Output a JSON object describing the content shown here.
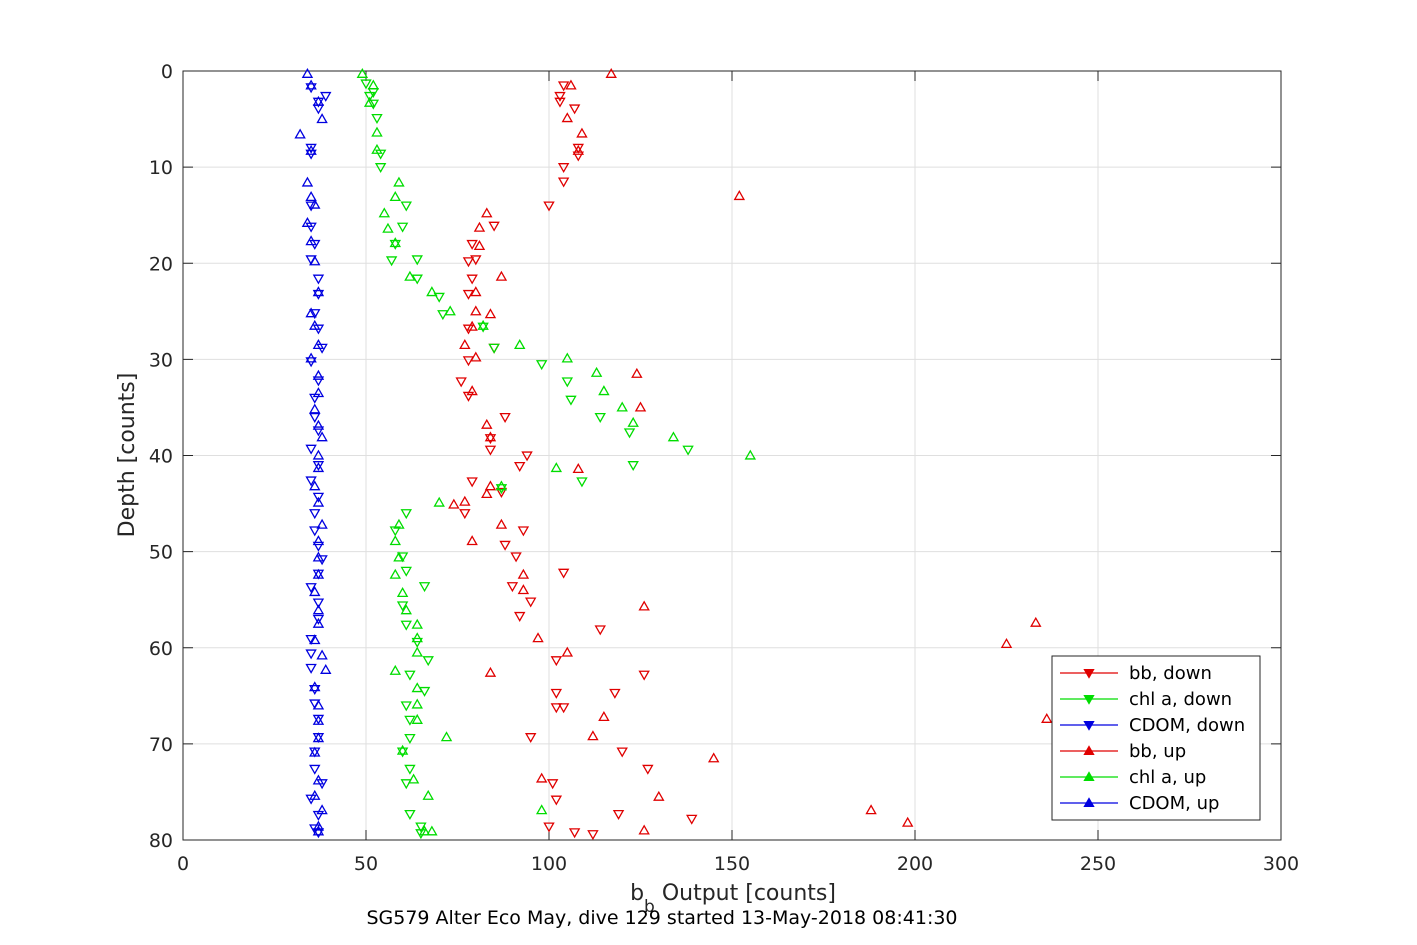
{
  "chart_data": {
    "type": "scatter",
    "subtitle": "SG579 Alter Eco May, dive 129 started 13-May-2018 08:41:30",
    "xlabel": {
      "main": "b",
      "sub": "b",
      "rest": " Output [counts]"
    },
    "ylabel": "Depth [counts]",
    "xlim": [
      0,
      300
    ],
    "ylim": [
      0,
      80
    ],
    "y_reversed": true,
    "xticks": [
      0,
      50,
      100,
      150,
      200,
      250,
      300
    ],
    "yticks": [
      0,
      10,
      20,
      30,
      40,
      50,
      60,
      70,
      80
    ],
    "grid": true,
    "legend_position": "bottom-right",
    "series": [
      {
        "name": "bb, down",
        "color": "#e00000",
        "marker": "triangle-down",
        "points": [
          [
            104,
            1.5
          ],
          [
            103,
            2.6
          ],
          [
            103,
            3.2
          ],
          [
            107,
            3.9
          ],
          [
            108,
            8.0
          ],
          [
            108,
            8.8
          ],
          [
            104,
            10.0
          ],
          [
            104,
            11.5
          ],
          [
            100,
            14.0
          ],
          [
            85,
            16.1
          ],
          [
            79,
            18.0
          ],
          [
            80,
            19.6
          ],
          [
            78,
            19.8
          ],
          [
            79,
            21.6
          ],
          [
            78,
            23.2
          ],
          [
            78,
            26.8
          ],
          [
            85,
            28.8
          ],
          [
            78,
            30.1
          ],
          [
            76,
            32.3
          ],
          [
            78,
            33.8
          ],
          [
            88,
            36.0
          ],
          [
            84,
            38.2
          ],
          [
            84,
            39.4
          ],
          [
            92,
            41.1
          ],
          [
            79,
            42.7
          ],
          [
            94,
            40.0
          ],
          [
            87,
            43.8
          ],
          [
            77,
            46.0
          ],
          [
            93,
            47.8
          ],
          [
            88,
            49.3
          ],
          [
            91,
            50.5
          ],
          [
            104,
            52.2
          ],
          [
            90,
            53.6
          ],
          [
            95,
            55.2
          ],
          [
            92,
            56.7
          ],
          [
            114,
            58.1
          ],
          [
            102,
            61.3
          ],
          [
            126,
            62.8
          ],
          [
            102,
            64.7
          ],
          [
            118,
            64.7
          ],
          [
            102,
            66.2
          ],
          [
            104,
            66.2
          ],
          [
            95,
            69.3
          ],
          [
            120,
            70.8
          ],
          [
            127,
            72.6
          ],
          [
            101,
            74.1
          ],
          [
            102,
            75.8
          ],
          [
            119,
            77.3
          ],
          [
            139,
            77.8
          ],
          [
            100,
            78.6
          ],
          [
            107,
            79.2
          ],
          [
            112,
            79.4
          ]
        ]
      },
      {
        "name": "chl a, down",
        "color": "#00dd00",
        "marker": "triangle-down",
        "points": [
          [
            50,
            1.3
          ],
          [
            52,
            2.2
          ],
          [
            51,
            2.6
          ],
          [
            52,
            3.4
          ],
          [
            53,
            4.9
          ],
          [
            54,
            8.6
          ],
          [
            54,
            10.0
          ],
          [
            61,
            14.0
          ],
          [
            60,
            16.2
          ],
          [
            58,
            18.0
          ],
          [
            64,
            19.6
          ],
          [
            57,
            19.7
          ],
          [
            64,
            21.6
          ],
          [
            70,
            23.5
          ],
          [
            71,
            25.3
          ],
          [
            82,
            26.6
          ],
          [
            85,
            28.8
          ],
          [
            98,
            30.5
          ],
          [
            105,
            32.3
          ],
          [
            106,
            34.2
          ],
          [
            114,
            36.0
          ],
          [
            122,
            37.6
          ],
          [
            123,
            41.0
          ],
          [
            138,
            39.4
          ],
          [
            109,
            42.7
          ],
          [
            87,
            43.4
          ],
          [
            61,
            46.0
          ],
          [
            58,
            47.8
          ],
          [
            60,
            50.5
          ],
          [
            61,
            52.0
          ],
          [
            66,
            53.6
          ],
          [
            60,
            55.6
          ],
          [
            61,
            57.6
          ],
          [
            64,
            59.4
          ],
          [
            67,
            61.3
          ],
          [
            62,
            62.8
          ],
          [
            66,
            64.5
          ],
          [
            61,
            66.0
          ],
          [
            62,
            67.5
          ],
          [
            62,
            69.4
          ],
          [
            60,
            70.8
          ],
          [
            62,
            72.6
          ],
          [
            61,
            74.1
          ],
          [
            62,
            77.3
          ],
          [
            65,
            78.6
          ],
          [
            65,
            79.3
          ]
        ]
      },
      {
        "name": "CDOM, down",
        "color": "#0000e0",
        "marker": "triangle-down",
        "points": [
          [
            35,
            1.7
          ],
          [
            39,
            2.6
          ],
          [
            37,
            3.2
          ],
          [
            37,
            3.9
          ],
          [
            35,
            8.0
          ],
          [
            35,
            8.6
          ],
          [
            35,
            14.0
          ],
          [
            35,
            16.2
          ],
          [
            36,
            18.0
          ],
          [
            35,
            19.6
          ],
          [
            37,
            21.6
          ],
          [
            37,
            23.2
          ],
          [
            36,
            25.2
          ],
          [
            37,
            26.8
          ],
          [
            38,
            28.8
          ],
          [
            35,
            30.2
          ],
          [
            37,
            32.2
          ],
          [
            36,
            34.0
          ],
          [
            36,
            36.0
          ],
          [
            37,
            37.4
          ],
          [
            35,
            39.3
          ],
          [
            37,
            41.0
          ],
          [
            35,
            42.6
          ],
          [
            37,
            44.3
          ],
          [
            36,
            46.0
          ],
          [
            36,
            47.8
          ],
          [
            37,
            49.4
          ],
          [
            38,
            50.8
          ],
          [
            37,
            52.3
          ],
          [
            35,
            53.7
          ],
          [
            37,
            55.3
          ],
          [
            37,
            57.0
          ],
          [
            35,
            59.1
          ],
          [
            35,
            60.6
          ],
          [
            35,
            62.1
          ],
          [
            36,
            64.3
          ],
          [
            36,
            65.8
          ],
          [
            37,
            67.4
          ],
          [
            37,
            69.3
          ],
          [
            36,
            70.8
          ],
          [
            36,
            72.6
          ],
          [
            38,
            74.1
          ],
          [
            35,
            75.7
          ],
          [
            37,
            77.4
          ],
          [
            36,
            78.8
          ],
          [
            37,
            79.2
          ]
        ]
      },
      {
        "name": "bb, up",
        "color": "#e00000",
        "marker": "triangle-up",
        "points": [
          [
            117,
            0.3
          ],
          [
            106,
            1.5
          ],
          [
            105,
            4.9
          ],
          [
            109,
            6.5
          ],
          [
            108,
            8.3
          ],
          [
            152,
            13.0
          ],
          [
            83,
            14.8
          ],
          [
            81,
            16.3
          ],
          [
            81,
            18.2
          ],
          [
            87,
            21.4
          ],
          [
            80,
            23.0
          ],
          [
            80,
            25.0
          ],
          [
            84,
            25.3
          ],
          [
            79,
            26.6
          ],
          [
            77,
            28.5
          ],
          [
            80,
            29.8
          ],
          [
            124,
            31.5
          ],
          [
            79,
            33.3
          ],
          [
            125,
            35.0
          ],
          [
            83,
            36.8
          ],
          [
            84,
            38.1
          ],
          [
            108,
            41.4
          ],
          [
            84,
            43.2
          ],
          [
            83,
            44.0
          ],
          [
            77,
            44.8
          ],
          [
            74,
            45.1
          ],
          [
            87,
            47.2
          ],
          [
            79,
            48.9
          ],
          [
            93,
            52.4
          ],
          [
            93,
            54.0
          ],
          [
            126,
            55.7
          ],
          [
            233,
            57.4
          ],
          [
            97,
            59.0
          ],
          [
            225,
            59.6
          ],
          [
            105,
            60.5
          ],
          [
            84,
            62.6
          ],
          [
            236,
            67.4
          ],
          [
            115,
            67.2
          ],
          [
            112,
            69.2
          ],
          [
            145,
            71.5
          ],
          [
            98,
            73.6
          ],
          [
            130,
            75.5
          ],
          [
            188,
            76.9
          ],
          [
            198,
            78.2
          ],
          [
            126,
            79.0
          ]
        ]
      },
      {
        "name": "chl a, up",
        "color": "#00dd00",
        "marker": "triangle-up",
        "points": [
          [
            49,
            0.3
          ],
          [
            52,
            1.5
          ],
          [
            51,
            3.3
          ],
          [
            53,
            6.4
          ],
          [
            53,
            8.2
          ],
          [
            59,
            11.6
          ],
          [
            58,
            13.1
          ],
          [
            55,
            14.8
          ],
          [
            56,
            16.4
          ],
          [
            58,
            17.9
          ],
          [
            62,
            21.4
          ],
          [
            68,
            23.0
          ],
          [
            73,
            25.0
          ],
          [
            82,
            26.5
          ],
          [
            92,
            28.5
          ],
          [
            105,
            29.9
          ],
          [
            113,
            31.4
          ],
          [
            115,
            33.3
          ],
          [
            120,
            35.0
          ],
          [
            123,
            36.6
          ],
          [
            134,
            38.1
          ],
          [
            155,
            40.0
          ],
          [
            102,
            41.3
          ],
          [
            87,
            43.2
          ],
          [
            70,
            44.9
          ],
          [
            59,
            47.2
          ],
          [
            58,
            48.9
          ],
          [
            59,
            50.6
          ],
          [
            58,
            52.4
          ],
          [
            60,
            54.3
          ],
          [
            61,
            56.1
          ],
          [
            64,
            57.6
          ],
          [
            64,
            59.0
          ],
          [
            64,
            60.5
          ],
          [
            58,
            62.4
          ],
          [
            64,
            64.2
          ],
          [
            64,
            65.9
          ],
          [
            64,
            67.5
          ],
          [
            72,
            69.3
          ],
          [
            63,
            73.7
          ],
          [
            67,
            75.4
          ],
          [
            98,
            76.9
          ],
          [
            66,
            79.1
          ],
          [
            68,
            79.1
          ],
          [
            60,
            70.7
          ]
        ]
      },
      {
        "name": "CDOM, up",
        "color": "#0000e0",
        "marker": "triangle-up",
        "points": [
          [
            34,
            0.3
          ],
          [
            35,
            1.5
          ],
          [
            37,
            3.2
          ],
          [
            38,
            5.0
          ],
          [
            32,
            6.6
          ],
          [
            35,
            8.3
          ],
          [
            34,
            11.6
          ],
          [
            35,
            13.1
          ],
          [
            36,
            13.9
          ],
          [
            34,
            15.8
          ],
          [
            35,
            17.7
          ],
          [
            36,
            19.8
          ],
          [
            37,
            23.0
          ],
          [
            35,
            25.2
          ],
          [
            36,
            26.5
          ],
          [
            37,
            28.5
          ],
          [
            35,
            29.9
          ],
          [
            37,
            31.7
          ],
          [
            37,
            33.5
          ],
          [
            36,
            35.2
          ],
          [
            37,
            36.9
          ],
          [
            38,
            38.1
          ],
          [
            37,
            40.0
          ],
          [
            37,
            41.3
          ],
          [
            36,
            43.2
          ],
          [
            37,
            44.9
          ],
          [
            38,
            47.2
          ],
          [
            37,
            48.9
          ],
          [
            37,
            50.6
          ],
          [
            37,
            52.4
          ],
          [
            36,
            54.2
          ],
          [
            37,
            56.1
          ],
          [
            37,
            57.5
          ],
          [
            36,
            59.2
          ],
          [
            38,
            60.8
          ],
          [
            39,
            62.3
          ],
          [
            36,
            64.1
          ],
          [
            37,
            66.0
          ],
          [
            37,
            67.6
          ],
          [
            37,
            69.4
          ],
          [
            36,
            70.9
          ],
          [
            37,
            73.8
          ],
          [
            36,
            75.4
          ],
          [
            38,
            76.9
          ],
          [
            37,
            78.6
          ],
          [
            37,
            79.1
          ]
        ]
      }
    ]
  }
}
